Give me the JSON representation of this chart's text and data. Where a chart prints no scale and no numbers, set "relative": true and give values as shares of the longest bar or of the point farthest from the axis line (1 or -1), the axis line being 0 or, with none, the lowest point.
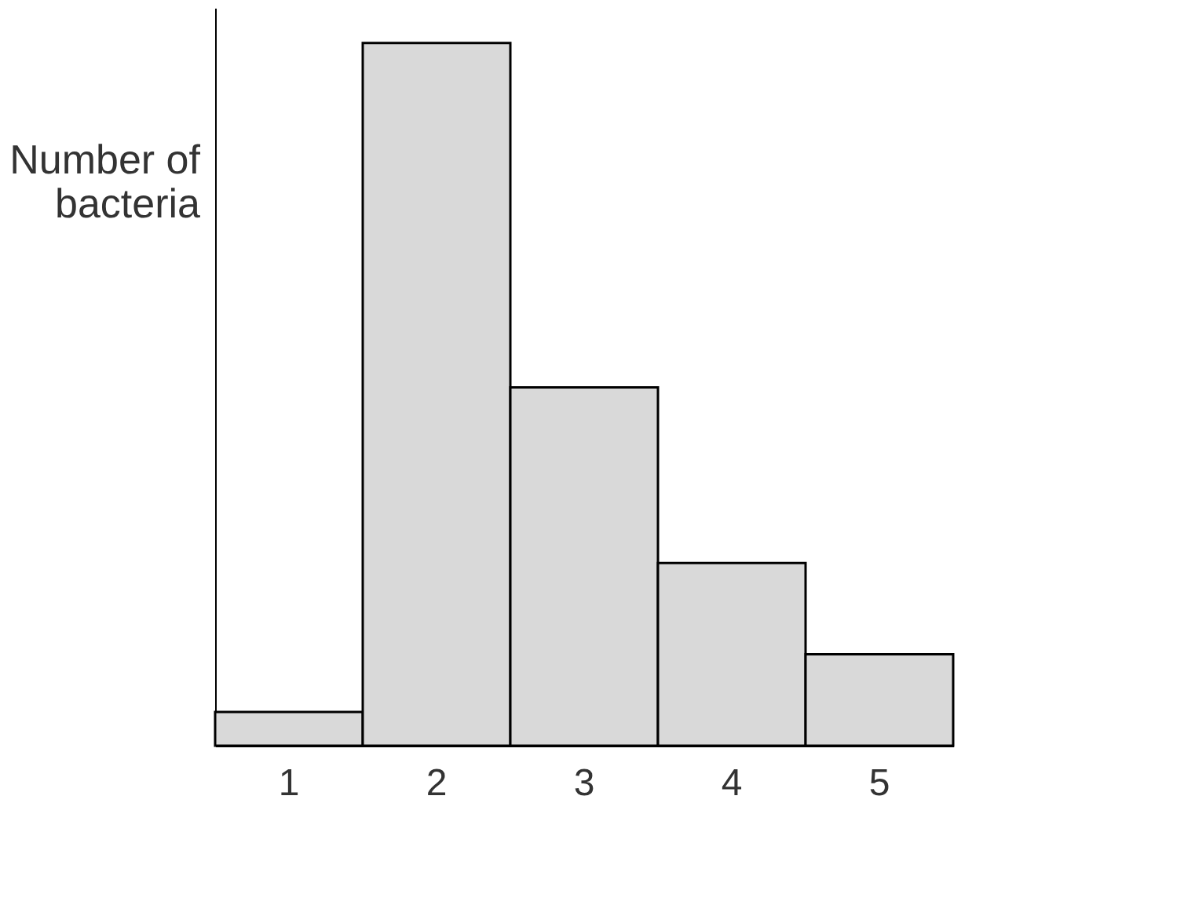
{
  "chart_data": {
    "type": "bar",
    "relative": true,
    "ylabel": "Number of bacteria",
    "categories": [
      "1",
      "2",
      "3",
      "4",
      "5"
    ],
    "values": [
      0.048,
      1,
      0.51,
      0.26,
      0.13
    ],
    "color": "#d9d9d9",
    "grid": false
  }
}
